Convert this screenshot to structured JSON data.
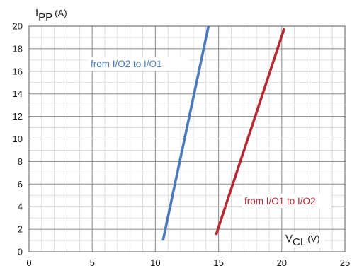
{
  "chart_data": {
    "type": "line",
    "ylabel": {
      "main": "I",
      "sub": "PP",
      "unit": "(A)"
    },
    "xlabel": {
      "main": "V",
      "sub": "CL",
      "unit": "(V)"
    },
    "xlim": [
      0,
      25
    ],
    "ylim": [
      0,
      20
    ],
    "xticks": [
      0,
      5,
      10,
      15,
      20,
      25
    ],
    "yticks": [
      0,
      2,
      4,
      6,
      8,
      10,
      12,
      14,
      16,
      18,
      20
    ],
    "x_minor_step": 1,
    "y_minor_step": 1,
    "grid": true,
    "series": [
      {
        "name": "from I/O2 to I/O1",
        "color": "#4a7ab8",
        "x": [
          10.6,
          14.2
        ],
        "y": [
          1.0,
          20.0
        ]
      },
      {
        "name": "from I/O1 to I/O2",
        "color": "#b52a33",
        "x": [
          14.8,
          20.2
        ],
        "y": [
          1.5,
          19.8
        ]
      }
    ]
  }
}
